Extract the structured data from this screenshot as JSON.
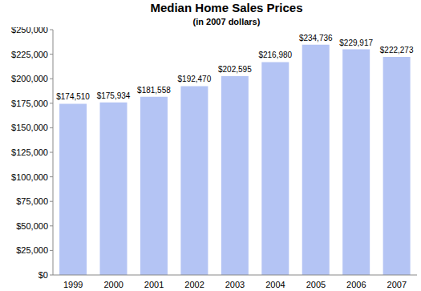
{
  "chart_data": {
    "type": "bar",
    "title": "Median Home Sales Prices",
    "subtitle": "(in 2007 dollars)",
    "categories": [
      "1999",
      "2000",
      "2001",
      "2002",
      "2003",
      "2004",
      "2005",
      "2006",
      "2007"
    ],
    "values": [
      174510,
      175934,
      181558,
      192470,
      202595,
      216980,
      234736,
      229917,
      222273
    ],
    "value_labels": [
      "$174,510",
      "$175,934",
      "$181,558",
      "$192,470",
      "$202,595",
      "$216,980",
      "$234,736",
      "$229,917",
      "$222,273"
    ],
    "data_labels": true,
    "color": "#b4c4f4",
    "ylim": [
      0,
      250000
    ],
    "yticks": [
      {
        "value": 0,
        "label": "$0"
      },
      {
        "value": 25000,
        "label": "$25,000"
      },
      {
        "value": 50000,
        "label": "$50,000"
      },
      {
        "value": 75000,
        "label": "$75,000"
      },
      {
        "value": 100000,
        "label": "$100,000"
      },
      {
        "value": 125000,
        "label": "$125,000"
      },
      {
        "value": 150000,
        "label": "$150,000"
      },
      {
        "value": 175000,
        "label": "$175,000"
      },
      {
        "value": 200000,
        "label": "$200,000"
      },
      {
        "value": 225000,
        "label": "$225,000"
      },
      {
        "value": 250000,
        "label": "$250,000"
      }
    ],
    "grid": false
  }
}
